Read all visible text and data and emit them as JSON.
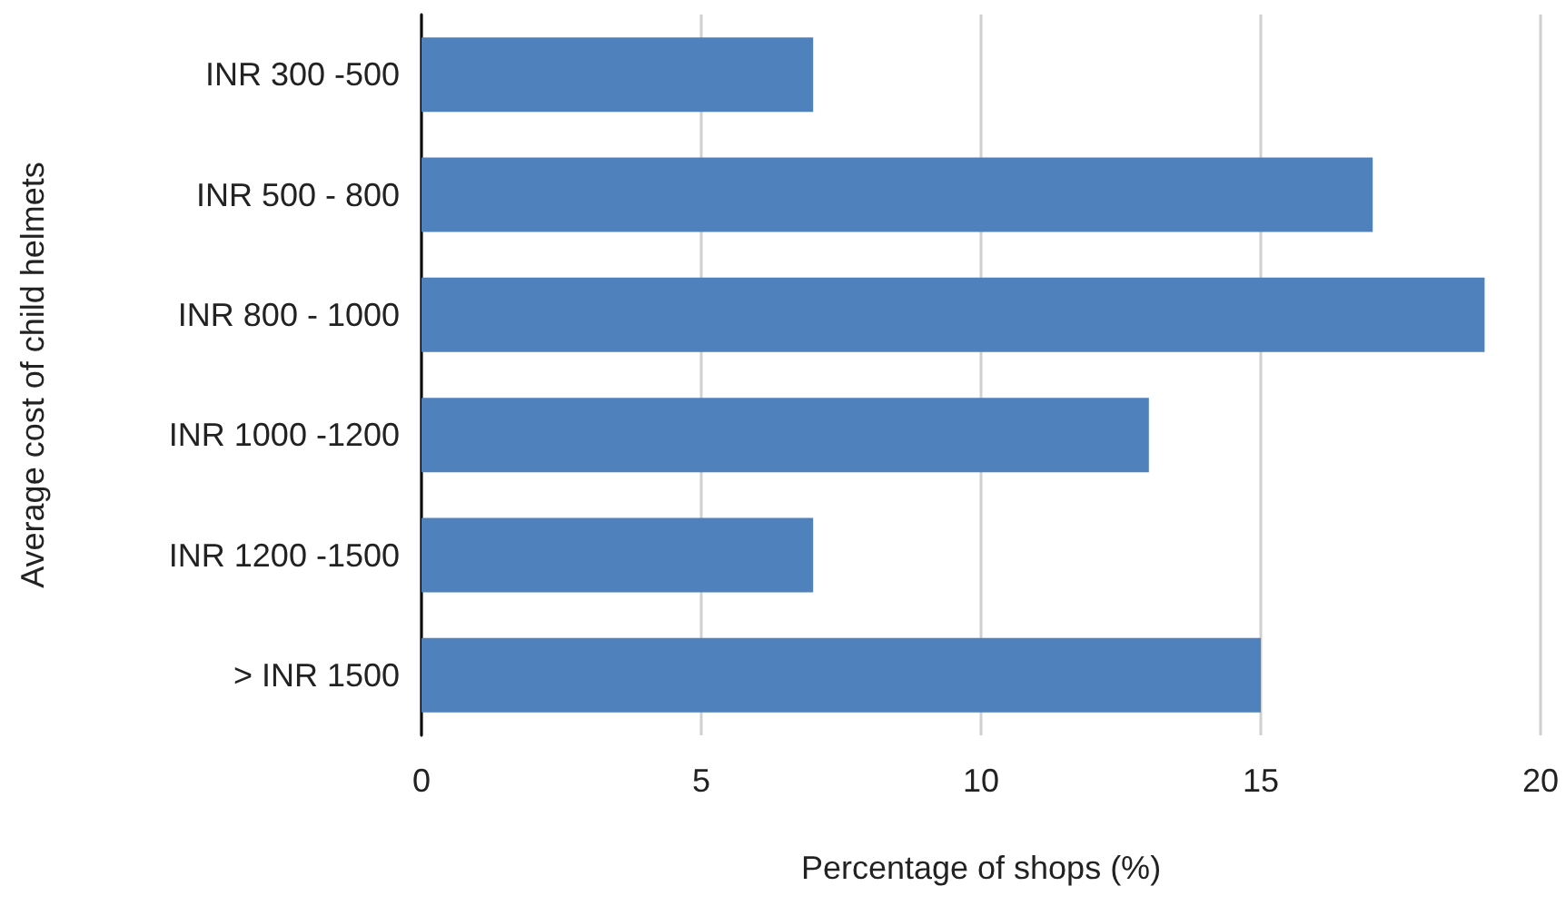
{
  "chart_data": {
    "type": "bar",
    "orientation": "horizontal",
    "categories": [
      "INR 300 -500",
      "INR 500 - 800",
      "INR 800 - 1000",
      "INR 1000 -1200",
      "INR 1200 -1500",
      "> INR 1500"
    ],
    "values": [
      7,
      17,
      19,
      13,
      7,
      15
    ],
    "color": "#4f81bd",
    "xlabel": "Percentage of shops (%)",
    "ylabel": "Average cost of child helmets",
    "xlim": [
      0,
      20
    ],
    "xticks": [
      0,
      5,
      10,
      15,
      20
    ],
    "grid": "x"
  }
}
